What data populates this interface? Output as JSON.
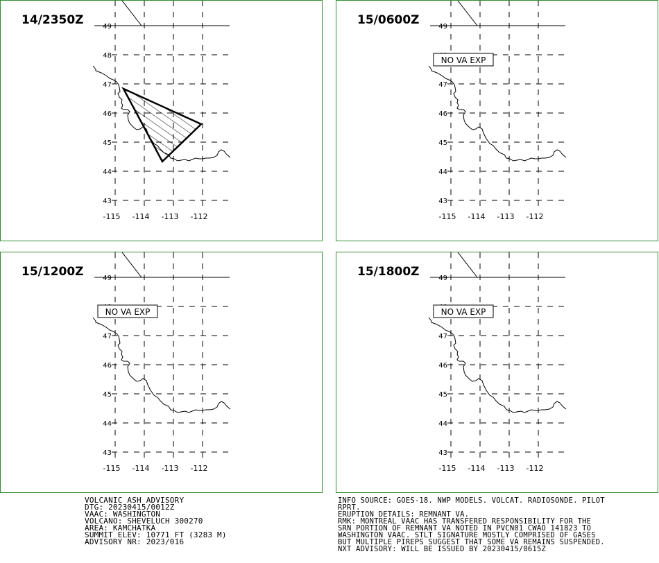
{
  "panels": [
    {
      "title": "14/2350Z",
      "ash": true,
      "label": ""
    },
    {
      "title": "15/0600Z",
      "ash": false,
      "label": "NO VA EXP"
    },
    {
      "title": "15/1200Z",
      "ash": false,
      "label": "NO VA EXP"
    },
    {
      "title": "15/1800Z",
      "ash": false,
      "label": "NO VA EXP"
    }
  ],
  "lat_labels": [
    "49",
    "48",
    "47",
    "46",
    "45",
    "44",
    "43"
  ],
  "lon_labels": [
    "-115",
    "-114",
    "-113",
    "-112"
  ],
  "colors": {
    "frame": "#2e8b2e",
    "line": "#000000"
  },
  "advisory": {
    "lines": [
      "VOLCANIC ASH ADVISORY",
      "DTG: 20230415/0012Z",
      "VAAC: WASHINGTON",
      "VOLCANO: SHEVELUCH 300270",
      "AREA: KAMCHATKA",
      "SUMMIT ELEV: 10771 FT (3283 M)",
      "ADVISORY NR: 2023/016"
    ]
  },
  "info": {
    "lines": [
      "INFO SOURCE: GOES-18. NWP MODELS. VOLCAT. RADIOSONDE. PILOT",
      "RPRT.",
      "ERUPTION DETAILS: REMNANT VA.",
      "RMK: MONTREAL VAAC HAS TRANSFERED RESPONSIBILITY FOR THE",
      "SRN PORTION OF REMNANT VA NOTED IN PVCN01 CWAO 141823 TO",
      "WASHINGTON VAAC. STLT SIGNATURE MOSTLY COMPRISED OF GASES",
      "BUT MULTIPLE PIREPS SUGGEST THAT SOME VA REMAINS SUSPENDED.",
      "NXT ADVISORY: WILL BE ISSUED BY 20230415/0615Z"
    ]
  }
}
